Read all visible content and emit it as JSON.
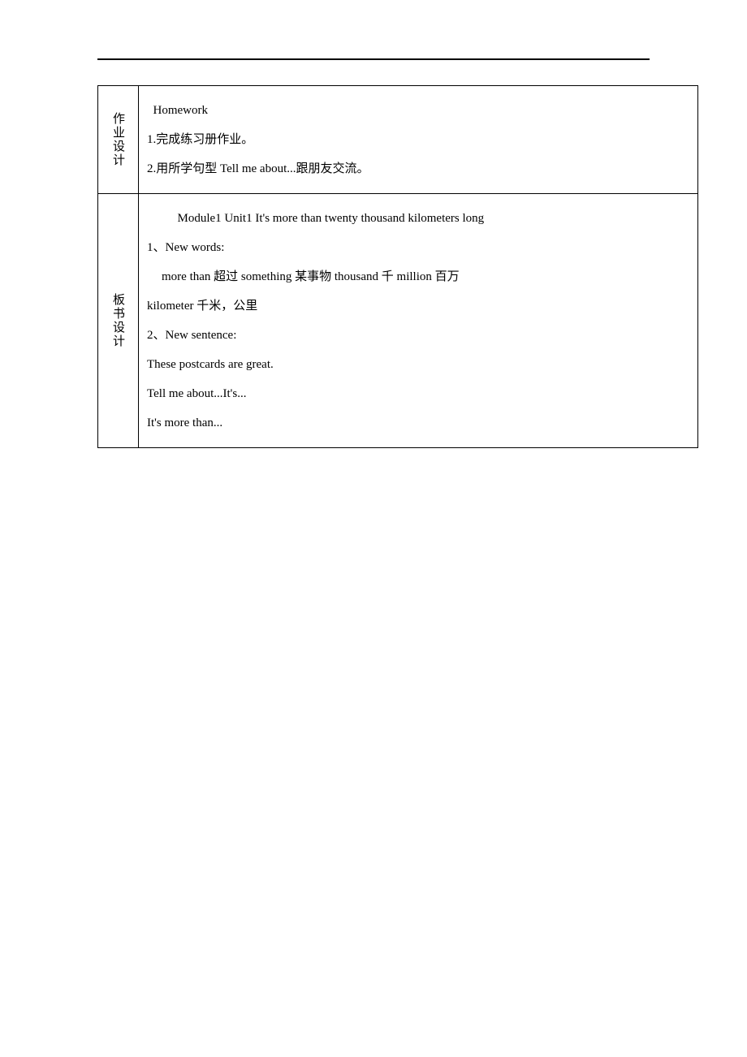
{
  "page": {
    "background_color": "#ffffff",
    "text_color": "#000000",
    "border_color": "#000000",
    "font_family": "SimSun",
    "font_size_pt": 11,
    "line_height": 2.4
  },
  "rows": [
    {
      "header": "作业设计",
      "lines": [
        {
          "text": "Homework",
          "indent": "indent-1"
        },
        {
          "text": "1.完成练习册作业。",
          "indent": ""
        },
        {
          "text": "2.用所学句型 Tell me about...跟朋友交流。",
          "indent": ""
        }
      ]
    },
    {
      "header": "板书设计",
      "lines": [
        {
          "text": "Module1 Unit1 It's more than twenty thousand kilometers long",
          "indent": "indent-2"
        },
        {
          "text": "1、New words:",
          "indent": ""
        },
        {
          "text": "more than 超过   something 某事物   thousand 千   million 百万",
          "indent": "indent-word"
        },
        {
          "text": "kilometer 千米，公里",
          "indent": ""
        },
        {
          "text": "2、New sentence:",
          "indent": ""
        },
        {
          "text": "These postcards are great.",
          "indent": ""
        },
        {
          "text": "Tell me about...It's...",
          "indent": ""
        },
        {
          "text": "It's more than...",
          "indent": ""
        }
      ]
    }
  ]
}
